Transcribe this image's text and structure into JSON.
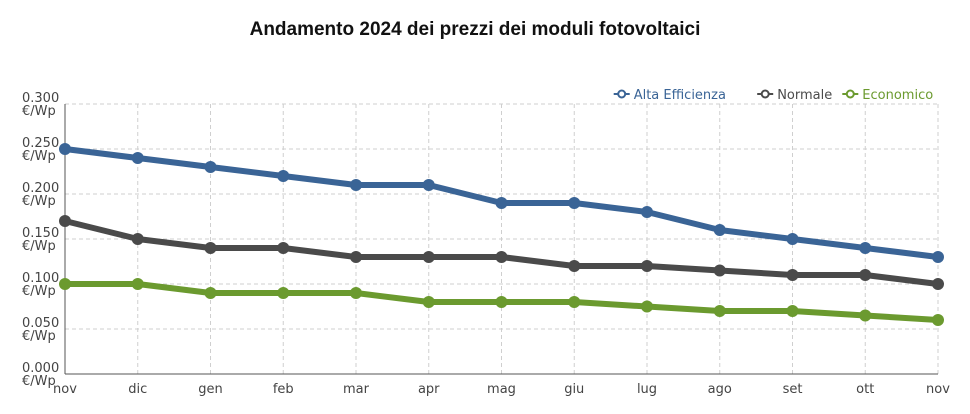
{
  "chart_data": {
    "type": "line",
    "title": "Andamento 2024 dei prezzi dei moduli fotovoltaici",
    "xlabel": "",
    "ylabel": "",
    "categories": [
      "nov",
      "dic",
      "gen",
      "feb",
      "mar",
      "apr",
      "mag",
      "giu",
      "lug",
      "ago",
      "set",
      "ott",
      "nov"
    ],
    "y_ticks": [
      "0.000",
      "0.050",
      "0.100",
      "0.150",
      "0.200",
      "0.250",
      "0.300"
    ],
    "y_unit": "€/Wp",
    "ylim": [
      0,
      0.3
    ],
    "grid": true,
    "legend_position": "top-right",
    "series": [
      {
        "name": "Alta Efficienza",
        "color": "#3a6496",
        "values": [
          0.25,
          0.24,
          0.23,
          0.22,
          0.21,
          0.21,
          0.19,
          0.19,
          0.18,
          0.16,
          0.15,
          0.14,
          0.13
        ]
      },
      {
        "name": "Normale",
        "color": "#4a4a4a",
        "values": [
          0.17,
          0.15,
          0.14,
          0.14,
          0.13,
          0.13,
          0.13,
          0.12,
          0.12,
          0.115,
          0.11,
          0.11,
          0.1
        ]
      },
      {
        "name": "Economico",
        "color": "#6b9a2f",
        "values": [
          0.1,
          0.1,
          0.09,
          0.09,
          0.09,
          0.08,
          0.08,
          0.08,
          0.075,
          0.07,
          0.07,
          0.065,
          0.06
        ]
      }
    ]
  }
}
